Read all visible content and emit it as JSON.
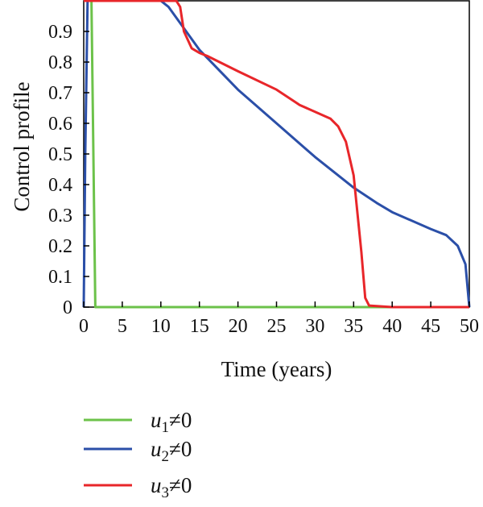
{
  "chart_data": {
    "type": "line",
    "title": "",
    "xlabel": "Time (years)",
    "ylabel": "Control profile",
    "xlim": [
      0,
      50
    ],
    "ylim": [
      0,
      1
    ],
    "xticks": [
      0,
      5,
      10,
      15,
      20,
      25,
      30,
      35,
      40,
      45,
      50
    ],
    "yticks": [
      0,
      0.1,
      0.2,
      0.3,
      0.4,
      0.5,
      0.6,
      0.7,
      0.8,
      0.9
    ],
    "grid": false,
    "legend_position": "bottom",
    "series": [
      {
        "name": "u1≠0",
        "legend_base": "u",
        "legend_sub": "1",
        "legend_suffix": "≠0",
        "color": "#6cc24a",
        "x": [
          0,
          0.5,
          1,
          1.5,
          2,
          50
        ],
        "y": [
          1,
          1,
          1,
          0,
          0,
          0
        ]
      },
      {
        "name": "u2≠0",
        "legend_base": "u",
        "legend_sub": "2",
        "legend_suffix": "≠0",
        "color": "#2b4fa8",
        "x": [
          0,
          0.2,
          0.5,
          1,
          5,
          10,
          11,
          15,
          20,
          25,
          30,
          33,
          35,
          38,
          40,
          45,
          47,
          48.5,
          49.5,
          50
        ],
        "y": [
          0,
          0.5,
          1,
          1,
          1,
          1,
          0.98,
          0.84,
          0.71,
          0.6,
          0.49,
          0.43,
          0.39,
          0.34,
          0.31,
          0.255,
          0.235,
          0.2,
          0.14,
          0
        ]
      },
      {
        "name": "u3≠0",
        "legend_base": "u",
        "legend_sub": "3",
        "legend_suffix": "≠0",
        "color": "#e8262a",
        "x": [
          0,
          5,
          10,
          12,
          12.5,
          13,
          14,
          15,
          16,
          20,
          25,
          28,
          32,
          33,
          34,
          35,
          36,
          36.5,
          37,
          40,
          45,
          50
        ],
        "y": [
          1,
          1,
          1,
          1,
          0.98,
          0.9,
          0.845,
          0.83,
          0.82,
          0.77,
          0.71,
          0.66,
          0.615,
          0.59,
          0.54,
          0.43,
          0.18,
          0.03,
          0.005,
          0,
          0,
          0
        ]
      }
    ]
  }
}
